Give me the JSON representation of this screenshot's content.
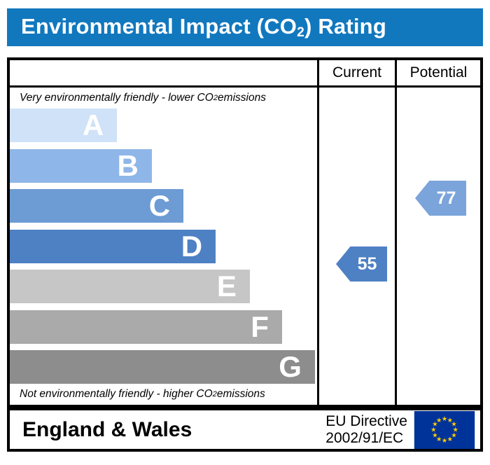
{
  "title": {
    "prefix": "Environmental Impact (CO",
    "subscript": "2",
    "suffix": ") Rating"
  },
  "table": {
    "columns": [
      {
        "label": "Current"
      },
      {
        "label": "Potential"
      }
    ],
    "top_note": {
      "prefix": "Very environmentally friendly - lower CO",
      "sub": "2",
      "suffix": " emissions"
    },
    "bottom_note": {
      "prefix": "Not environmentally friendly - higher CO",
      "sub": "2",
      "suffix": " emissions"
    }
  },
  "footer": {
    "region": "England & Wales",
    "directive": {
      "line1": "EU Directive",
      "line2": "2002/91/EC"
    },
    "eu_flag": {
      "name": "eu-flag",
      "background": "#003399",
      "star_color": "#FFCC00",
      "star_count": 12
    }
  },
  "colors": {
    "banner_bg": "#1278BE",
    "banner_text": "#FFFFFF",
    "border": "#000000"
  },
  "chart_data": {
    "type": "bar",
    "orientation": "horizontal",
    "title": "Environmental Impact (CO2) Rating",
    "top_annotation": "Very environmentally friendly - lower CO2 emissions",
    "bottom_annotation": "Not environmentally friendly - higher CO2 emissions",
    "categories": [
      "A",
      "B",
      "C",
      "D",
      "E",
      "F",
      "G"
    ],
    "bands": [
      {
        "letter": "A",
        "color": "#CFE2F8",
        "width_pct": 34.9
      },
      {
        "letter": "B",
        "color": "#8FB6E8",
        "width_pct": 46.2
      },
      {
        "letter": "C",
        "color": "#6D9BD4",
        "width_pct": 56.5
      },
      {
        "letter": "D",
        "color": "#4E80C4",
        "width_pct": 67.0
      },
      {
        "letter": "E",
        "color": "#C6C6C6",
        "width_pct": 78.1
      },
      {
        "letter": "F",
        "color": "#AAAAAA",
        "width_pct": 88.6
      },
      {
        "letter": "G",
        "color": "#8D8D8D",
        "width_pct": 99.3
      }
    ],
    "markers": {
      "current": {
        "column": "Current",
        "value": 55,
        "color": "#4E80C4"
      },
      "potential": {
        "column": "Potential",
        "value": 77,
        "color": "#7BA4DA"
      }
    },
    "legend_position": "none",
    "grid": false
  }
}
